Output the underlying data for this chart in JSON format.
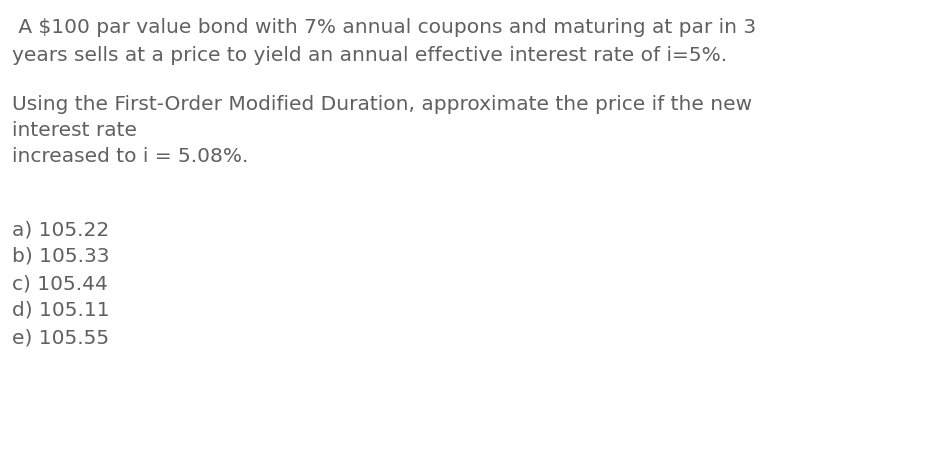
{
  "background_color": "#ffffff",
  "text_color": "#606060",
  "font_size": 14.5,
  "line1": " A $100 par value bond with 7% annual coupons and maturing at par in 3",
  "line2": "years sells at a price to yield an annual effective interest rate of i=5%.",
  "line3": "Using the First-Order Modified Duration, approximate the price if the new",
  "line4": "interest rate",
  "line5": "increased to i = 5.08%.",
  "options": [
    "a) 105.22",
    "b) 105.33",
    "c) 105.44",
    "d) 105.11",
    "e) 105.55"
  ],
  "font_family": "DejaVu Sans"
}
